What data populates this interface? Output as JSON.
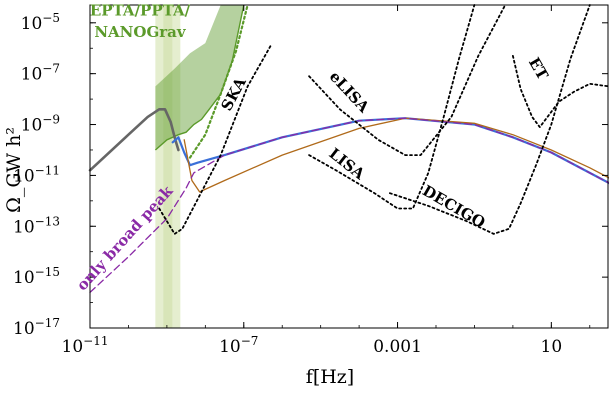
{
  "chart_data": {
    "type": "line",
    "xlabel": "f[Hz]",
    "ylabel": "Ω_GW h²",
    "xscale": "log",
    "yscale": "log",
    "xlim": [
      -11,
      2.5
    ],
    "ylim": [
      -17,
      -4.3
    ],
    "x_ticks": [
      {
        "exp": -11,
        "label": "10",
        "sup": "−11"
      },
      {
        "exp": -7,
        "label": "10",
        "sup": "−7"
      },
      {
        "exp": -3,
        "label": "0.001",
        "sup": ""
      },
      {
        "exp": 1,
        "label": "10",
        "sup": ""
      }
    ],
    "y_ticks": [
      {
        "exp": -5,
        "label": "10",
        "sup": "−5"
      },
      {
        "exp": -7,
        "label": "10",
        "sup": "−7"
      },
      {
        "exp": -9,
        "label": "10",
        "sup": "−9"
      },
      {
        "exp": -11,
        "label": "10",
        "sup": "−11"
      },
      {
        "exp": -13,
        "label": "10",
        "sup": "−13"
      },
      {
        "exp": -15,
        "label": "10",
        "sup": "−15"
      },
      {
        "exp": -17,
        "label": "10",
        "sup": "−17"
      }
    ],
    "grid": false,
    "colors": {
      "gray": "#666666",
      "blue": "#3a6fd8",
      "orange": "#b06a1a",
      "purple": "#8a2aa6",
      "green": "#5b9a2a",
      "green_light": "#cfe0a8",
      "black": "#000000"
    },
    "series": [
      {
        "key": "gray",
        "style": "solid",
        "points": [
          [
            -11,
            -10.8
          ],
          [
            -10,
            -9.4
          ],
          [
            -9.5,
            -8.7
          ],
          [
            -9.2,
            -8.4
          ],
          [
            -9.05,
            -8.4
          ],
          [
            -8.9,
            -8.9
          ],
          [
            -8.78,
            -9.6
          ],
          [
            -8.7,
            -10.0
          ]
        ]
      },
      {
        "key": "blue",
        "style": "solid",
        "points": [
          [
            -8.85,
            -9.7
          ],
          [
            -8.7,
            -9.5
          ],
          [
            -8.55,
            -10.1
          ],
          [
            -8.4,
            -10.6
          ],
          [
            -8.2,
            -10.5
          ],
          [
            -7.5,
            -10.2
          ],
          [
            -6,
            -9.5
          ],
          [
            -4,
            -8.85
          ],
          [
            -2.8,
            -8.75
          ],
          [
            -1,
            -9.0
          ],
          [
            0,
            -9.5
          ],
          [
            1,
            -10.1
          ],
          [
            2,
            -10.9
          ],
          [
            2.5,
            -11.3
          ]
        ]
      },
      {
        "key": "orange",
        "style": "solid",
        "points": [
          [
            -8.55,
            -9.6
          ],
          [
            -8.35,
            -11.2
          ],
          [
            -8.15,
            -11.65
          ],
          [
            -7.5,
            -11.2
          ],
          [
            -6,
            -10.2
          ],
          [
            -4,
            -9.15
          ],
          [
            -2.8,
            -8.75
          ],
          [
            -1,
            -8.95
          ],
          [
            0,
            -9.4
          ],
          [
            1,
            -10.0
          ],
          [
            2,
            -10.7
          ],
          [
            2.5,
            -11.1
          ]
        ]
      },
      {
        "key": "purple",
        "style": "dashed",
        "points": [
          [
            -11,
            -15.6
          ],
          [
            -10,
            -14.2
          ],
          [
            -9,
            -12.7
          ],
          [
            -8.5,
            -11.5
          ],
          [
            -8.3,
            -10.9
          ],
          [
            -7.5,
            -10.2
          ],
          [
            -6,
            -9.5
          ],
          [
            -4,
            -8.85
          ],
          [
            -2.8,
            -8.75
          ],
          [
            -1,
            -9.0
          ],
          [
            0,
            -9.5
          ],
          [
            1,
            -10.1
          ],
          [
            2,
            -10.9
          ],
          [
            2.5,
            -11.3
          ]
        ]
      },
      {
        "key": "green",
        "style": "dotted",
        "points": [
          [
            -8.4,
            -10.3
          ],
          [
            -8,
            -9.4
          ],
          [
            -7.6,
            -7.8
          ],
          [
            -7.2,
            -6.1
          ],
          [
            -6.9,
            -4.3
          ]
        ]
      },
      {
        "key": "black",
        "style": "dotted",
        "name": "SKA",
        "points": [
          [
            -9.2,
            -12.3
          ],
          [
            -8.8,
            -13.3
          ],
          [
            -8.6,
            -13.1
          ],
          [
            -7.6,
            -10.2
          ],
          [
            -6.9,
            -7.5
          ],
          [
            -6.3,
            -5.9
          ]
        ]
      },
      {
        "key": "black",
        "style": "dotted",
        "name": "eLISA",
        "points": [
          [
            -5.3,
            -7.1
          ],
          [
            -4.5,
            -8.4
          ],
          [
            -3.5,
            -9.6
          ],
          [
            -2.8,
            -10.2
          ],
          [
            -2.4,
            -10.2
          ],
          [
            -1.6,
            -8.7
          ],
          [
            -0.9,
            -6.3
          ],
          [
            -0.2,
            -4.3
          ]
        ]
      },
      {
        "key": "black",
        "style": "dotted",
        "name": "LISA",
        "points": [
          [
            -5.3,
            -10.2
          ],
          [
            -4.6,
            -10.8
          ],
          [
            -3.6,
            -11.7
          ],
          [
            -3,
            -12.3
          ],
          [
            -2.6,
            -12.3
          ],
          [
            -2.2,
            -10.9
          ],
          [
            -1.8,
            -8.7
          ],
          [
            -1.4,
            -6.4
          ],
          [
            -1.0,
            -4.3
          ]
        ]
      },
      {
        "key": "black",
        "style": "dotted",
        "name": "DECIGO",
        "points": [
          [
            -3.2,
            -11.7
          ],
          [
            -2.2,
            -12.2
          ],
          [
            -1.2,
            -12.8
          ],
          [
            -0.5,
            -13.3
          ],
          [
            -0.1,
            -13.1
          ],
          [
            0.2,
            -12.1
          ],
          [
            0.6,
            -10.6
          ],
          [
            1.0,
            -9.0
          ],
          [
            1.5,
            -6.4
          ],
          [
            2.0,
            -4.3
          ]
        ]
      },
      {
        "key": "black",
        "style": "dotted",
        "name": "ET",
        "points": [
          [
            0.0,
            -6.3
          ],
          [
            0.2,
            -7.6
          ],
          [
            0.5,
            -8.7
          ],
          [
            0.7,
            -9.1
          ],
          [
            0.9,
            -8.7
          ],
          [
            1.2,
            -8.1
          ],
          [
            1.6,
            -7.7
          ],
          [
            2.0,
            -7.4
          ],
          [
            2.5,
            -7.5
          ]
        ]
      }
    ],
    "bands": [
      {
        "key": "green_light",
        "x": [
          -9.3,
          -8.65
        ],
        "y": [
          -17,
          -4.3
        ]
      }
    ],
    "pta_band": [
      [
        -9.3,
        -10.0
      ],
      [
        -9.0,
        -9.6
      ],
      [
        -8.7,
        -9.4
      ],
      [
        -8.5,
        -9.3
      ],
      [
        -8.3,
        -9.0
      ],
      [
        -8.1,
        -8.8
      ],
      [
        -7.9,
        -8.4
      ],
      [
        -7.6,
        -7.8
      ],
      [
        -7.3,
        -6.5
      ],
      [
        -7.0,
        -4.3
      ],
      [
        -7.6,
        -4.3
      ],
      [
        -8.0,
        -5.8
      ],
      [
        -8.4,
        -6.2
      ],
      [
        -8.8,
        -6.8
      ],
      [
        -9.3,
        -7.5
      ]
    ],
    "annotations": [
      {
        "text": "EPTA/PPTA/",
        "x": -9.7,
        "y": -4.72,
        "color": "#5b9a2a",
        "rotate": 0,
        "bold": true
      },
      {
        "text": "NANOGrav",
        "x": -9.7,
        "y": -5.55,
        "color": "#5b9a2a",
        "rotate": 0,
        "bold": true
      },
      {
        "text": "SKA",
        "x": -7.15,
        "y": -7.9,
        "color": "#000000",
        "rotate": -62,
        "bold": true
      },
      {
        "text": "eLISA",
        "x": -4.35,
        "y": -7.85,
        "color": "#000000",
        "rotate": 47,
        "bold": true
      },
      {
        "text": "LISA",
        "x": -4.4,
        "y": -10.7,
        "color": "#000000",
        "rotate": 38,
        "bold": true
      },
      {
        "text": "DECIGO",
        "x": -1.6,
        "y": -12.4,
        "color": "#000000",
        "rotate": 30,
        "bold": true
      },
      {
        "text": "ET",
        "x": 0.55,
        "y": -6.9,
        "color": "#000000",
        "rotate": 60,
        "bold": true
      },
      {
        "text": "only broad peak",
        "x": -10.0,
        "y": -13.6,
        "color": "#8a2aa6",
        "rotate": -48,
        "bold": true
      }
    ]
  }
}
